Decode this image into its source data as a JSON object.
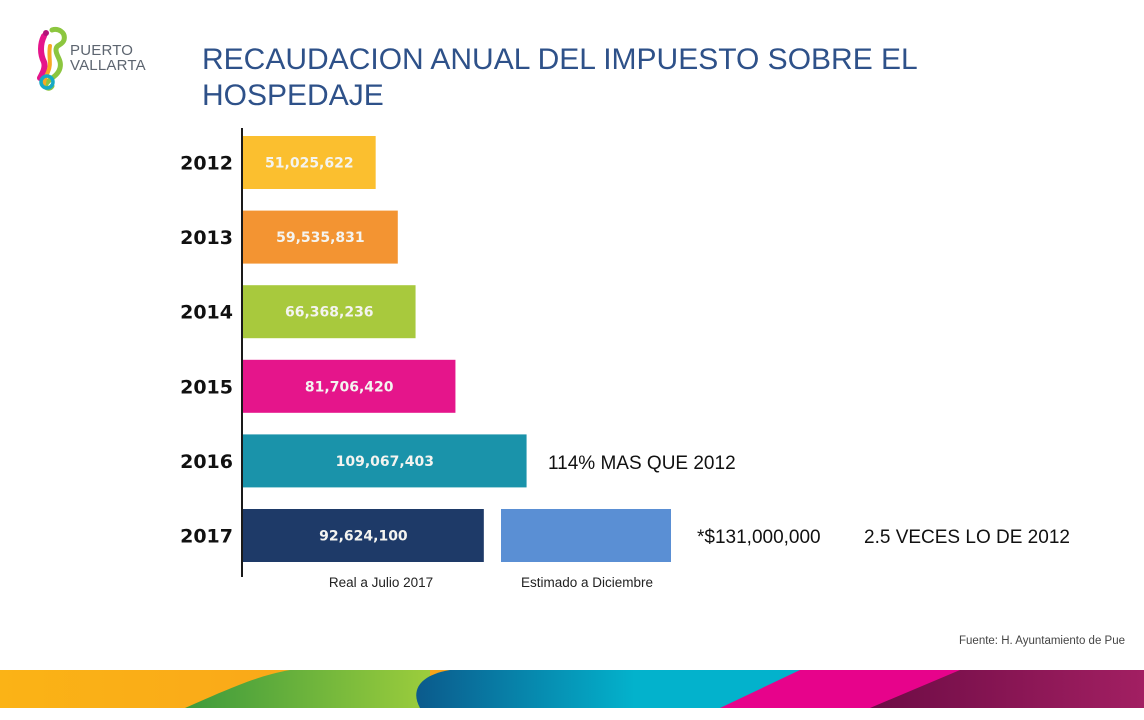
{
  "header": {
    "logo_text_line1": "PUERTO",
    "logo_text_line2": "VALLARTA",
    "title_line1": "RECAUDACION ANUAL DEL IMPUESTO SOBRE EL",
    "title_line2": "HOSPEDAJE"
  },
  "chart_data": {
    "type": "bar",
    "orientation": "horizontal",
    "title": "RECAUDACION ANUAL DEL IMPUESTO SOBRE EL HOSPEDAJE",
    "xlabel": "",
    "ylabel": "",
    "categories": [
      "2012",
      "2013",
      "2014",
      "2015",
      "2016",
      "2017"
    ],
    "values": [
      51025622,
      59535831,
      66368236,
      81706420,
      109067403,
      92624100
    ],
    "value_labels": [
      "51,025,622",
      "59,535,831",
      "66,368,236",
      "81,706,420",
      "109,067,403",
      "92,624,100"
    ],
    "colors": [
      "#fbbf2f",
      "#f39432",
      "#a8c93d",
      "#e5158b",
      "#1a93aa",
      "#1e3a68"
    ],
    "estimate": {
      "category": "2017",
      "color": "#5a8fd4",
      "label": "*$131,000,000",
      "note": "2.5 VECES LO DE 2012"
    },
    "annotations": [
      {
        "category": "2016",
        "text": "114% MAS QUE 2012"
      }
    ],
    "sub_labels": {
      "real": "Real a Julio 2017",
      "estimated": "Estimado a Diciembre"
    },
    "grid": false,
    "legend": "none"
  },
  "footer": {
    "source": "Fuente: H. Ayuntamiento de Pue"
  },
  "colors": {
    "title": "#2e5189",
    "axis": "#1a1a1a"
  }
}
